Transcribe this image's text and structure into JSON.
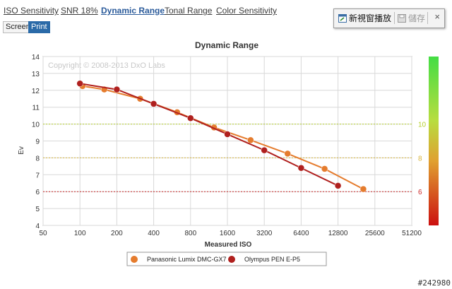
{
  "tabs": [
    {
      "label": "ISO Sensitivity",
      "active": false
    },
    {
      "label": "SNR 18%",
      "active": false
    },
    {
      "label": "Dynamic Range",
      "active": true
    },
    {
      "label": "Tonal Range",
      "active": false
    },
    {
      "label": "Color Sensitivity",
      "active": false
    }
  ],
  "view_buttons": {
    "screen": "Screen",
    "print": "Print"
  },
  "popup": {
    "new_window": "新視窗播放",
    "save": "儲存",
    "close": "×"
  },
  "watermark": "#242980",
  "copyright": "Copyright © 2008-2013 DxO Labs",
  "colors": {
    "series1": "#e57c2e",
    "series2": "#b0201e",
    "accent": "#2a5a9a"
  },
  "chart_data": {
    "type": "line",
    "title": "Dynamic Range",
    "xlabel": "Measured ISO",
    "ylabel": "Ev",
    "x_scale": "log2",
    "x_ticks": [
      "50",
      "100",
      "200",
      "400",
      "800",
      "1600",
      "3200",
      "6400",
      "12800",
      "25600",
      "51200"
    ],
    "ylim": [
      4,
      14
    ],
    "y_ticks": [
      4,
      5,
      6,
      7,
      8,
      9,
      10,
      11,
      12,
      13,
      14
    ],
    "reference_lines": [
      {
        "value": 10,
        "label": "10",
        "color": "#b5cf2a"
      },
      {
        "value": 8,
        "label": "8",
        "color": "#d8b43a"
      },
      {
        "value": 6,
        "label": "6",
        "color": "#cc2a2a"
      }
    ],
    "legend_position": "bottom",
    "series": [
      {
        "name": "Panasonic Lumix DMC-GX7",
        "x": [
          105,
          158,
          310,
          622,
          1245,
          2475,
          4960,
          9950,
          20600
        ],
        "y": [
          12.25,
          12.05,
          11.5,
          10.7,
          9.8,
          9.05,
          8.25,
          7.35,
          6.15
        ]
      },
      {
        "name": "Olympus PEN E-P5",
        "x": [
          100,
          200,
          400,
          800,
          1600,
          3200,
          6400,
          12800
        ],
        "y": [
          12.4,
          12.05,
          11.2,
          10.35,
          9.4,
          8.45,
          7.4,
          6.35
        ]
      }
    ]
  }
}
